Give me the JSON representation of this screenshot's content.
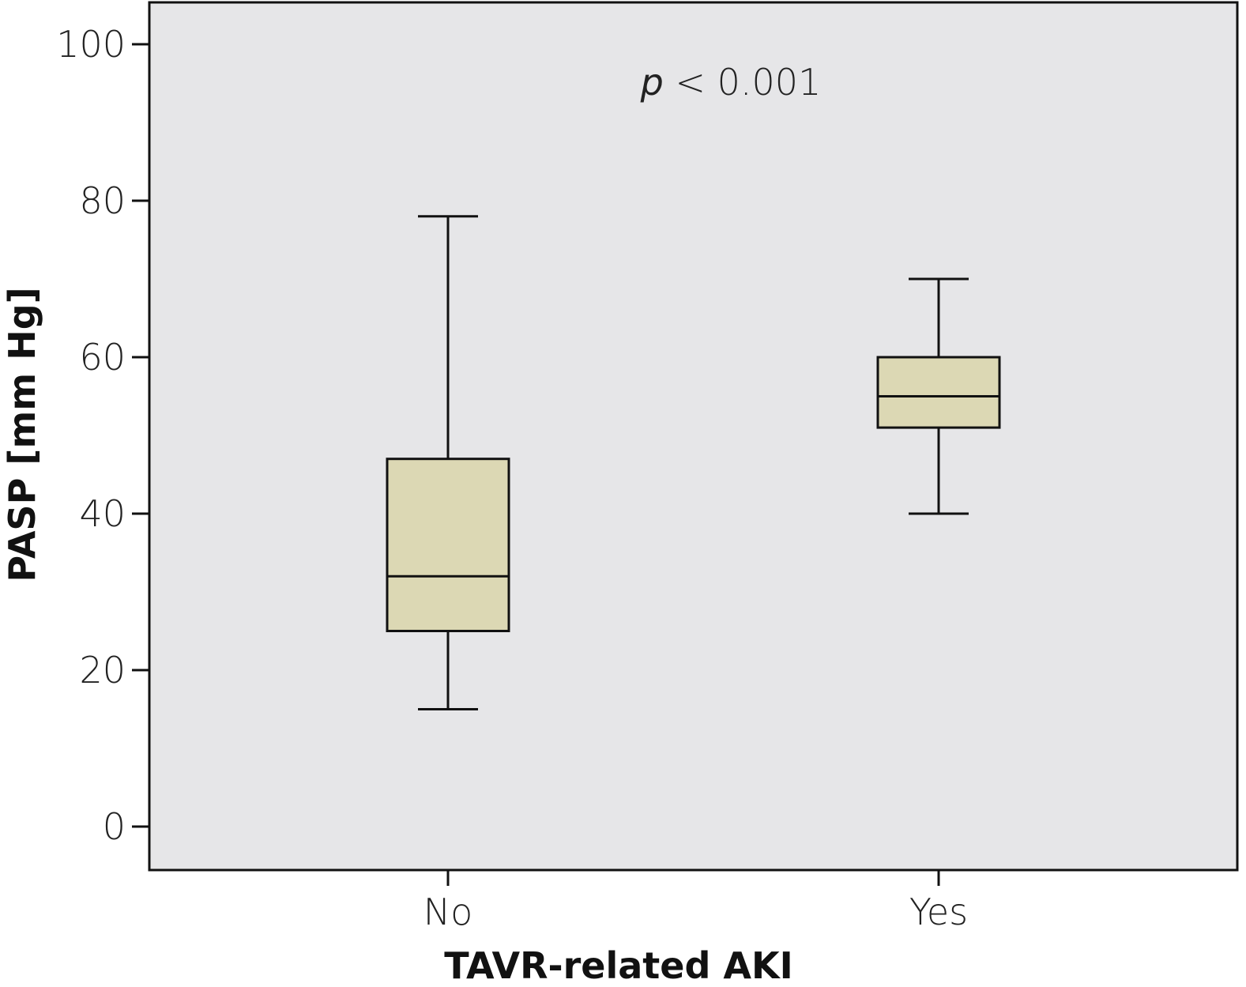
{
  "chart_data": {
    "type": "box",
    "xlabel": "TAVR-related AKI",
    "ylabel": "PASP [mm Hg]",
    "ylim": [
      -5,
      105
    ],
    "yticks": [
      0,
      20,
      40,
      60,
      80,
      100
    ],
    "categories": [
      "No",
      "Yes"
    ],
    "boxes": [
      {
        "category": "No",
        "whisker_low": 15,
        "q1": 25,
        "median": 32,
        "q3": 47,
        "whisker_high": 78
      },
      {
        "category": "Yes",
        "whisker_low": 40,
        "q1": 51,
        "median": 55,
        "q3": 60,
        "whisker_high": 70
      }
    ],
    "annotation": {
      "p_symbol": "p",
      "text": " < 0.001"
    },
    "grid": false,
    "legend": "none",
    "colors": {
      "plot_background": "#e6e6e8",
      "box_fill": "#dcd8b4",
      "line": "#111111"
    }
  }
}
